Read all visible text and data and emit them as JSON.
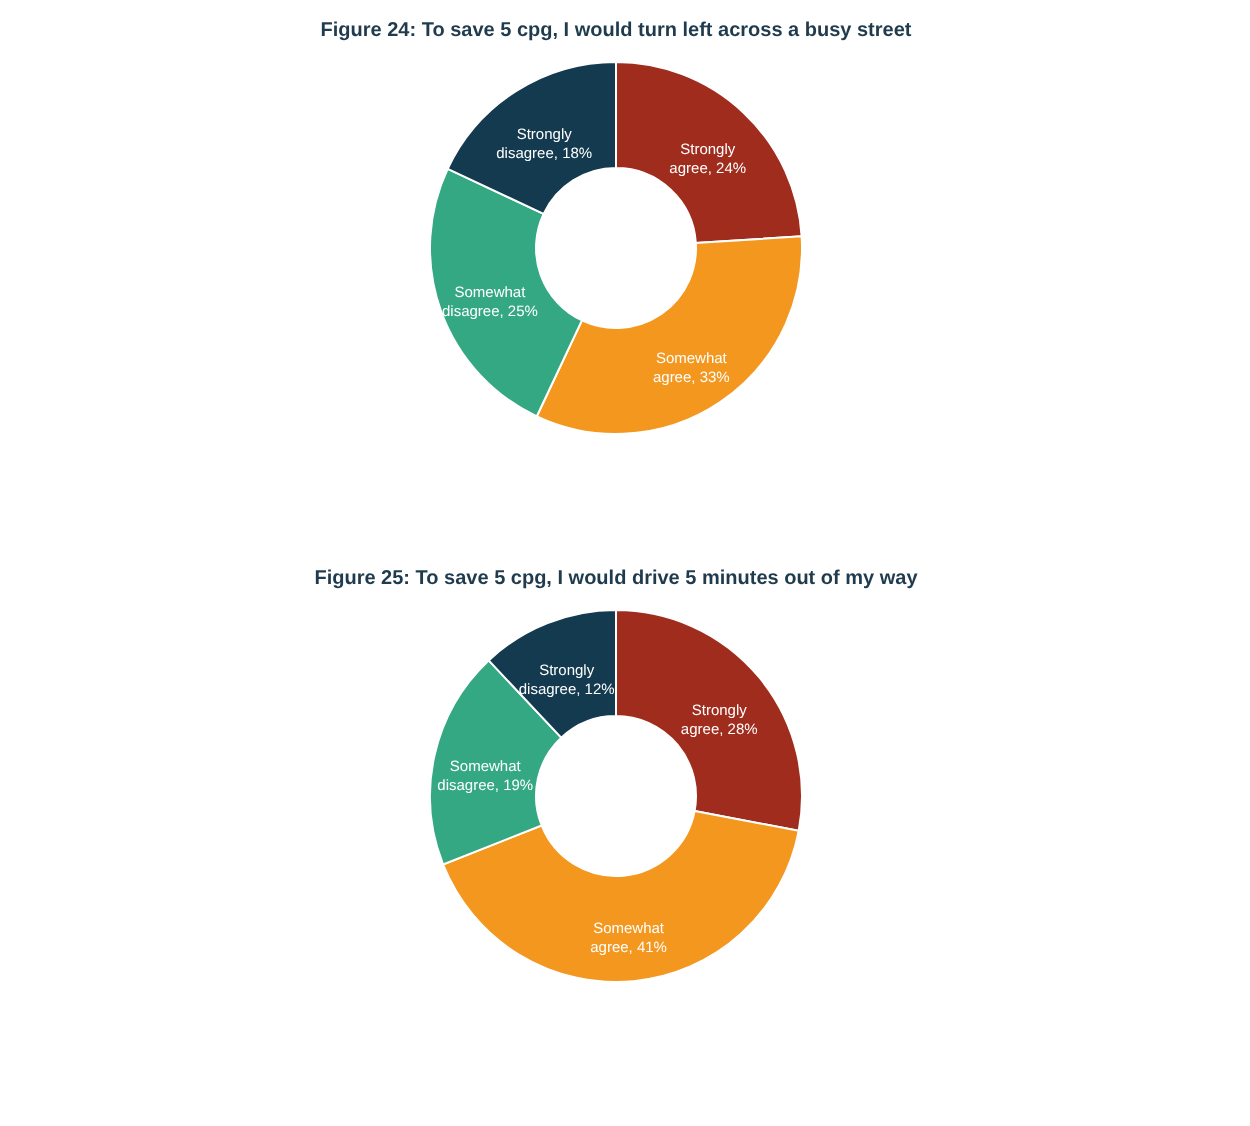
{
  "chart_data": [
    {
      "type": "donut",
      "title": "Figure 24: To save 5 cpg, I would turn left across a busy street",
      "categories": [
        "Strongly agree",
        "Somewhat agree",
        "Somewhat disagree",
        "Strongly disagree"
      ],
      "values": [
        24,
        33,
        25,
        18
      ],
      "colors": [
        "#a02c1e",
        "#f3971f",
        "#34a882",
        "#133a4e"
      ],
      "value_labels": [
        "24%",
        "33%",
        "25%",
        "18%"
      ],
      "legend": false
    },
    {
      "type": "donut",
      "title": "Figure 25: To save 5 cpg, I would drive 5 minutes out of my way",
      "categories": [
        "Strongly agree",
        "Somewhat agree",
        "Somewhat disagree",
        "Strongly disagree"
      ],
      "values": [
        28,
        41,
        19,
        12
      ],
      "colors": [
        "#a02c1e",
        "#f3971f",
        "#34a882",
        "#133a4e"
      ],
      "value_labels": [
        "28%",
        "41%",
        "19%",
        "12%"
      ],
      "legend": false
    }
  ]
}
